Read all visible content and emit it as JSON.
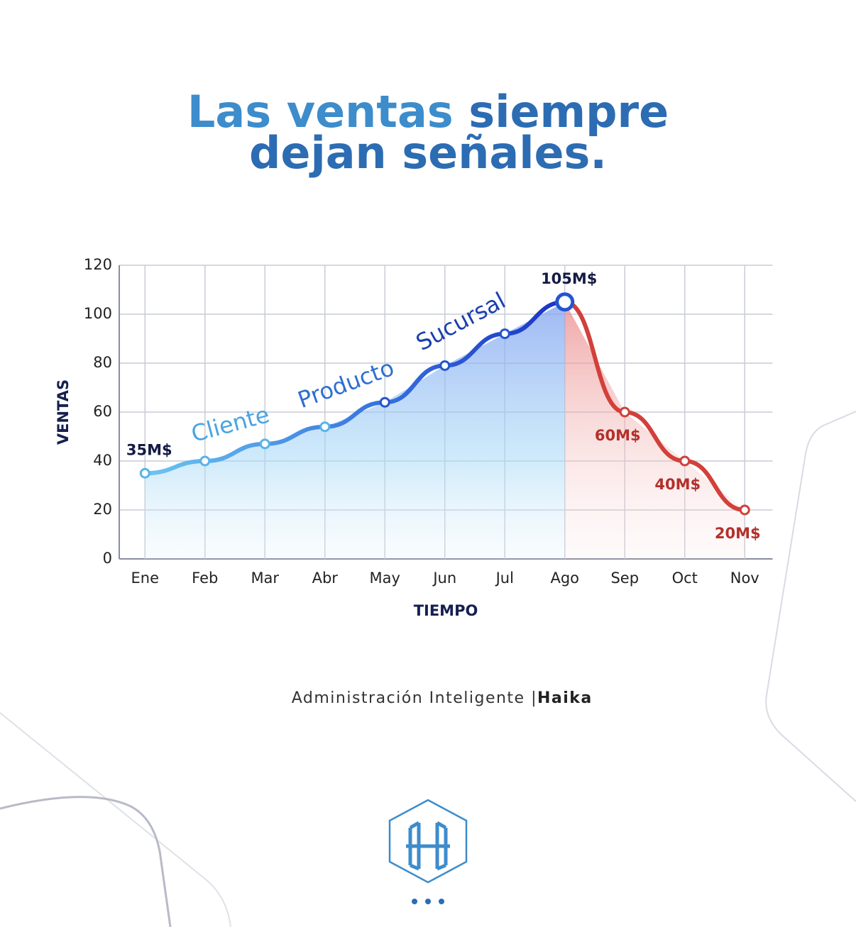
{
  "chart_data": {
    "type": "line",
    "title": {
      "line1": "Las ventas",
      "line1_bold": "siempre",
      "line2": "dejan señales."
    },
    "x_label": "TIEMPO",
    "y_label": "VENTAS",
    "categories": [
      "Ene",
      "Feb",
      "Mar",
      "Abr",
      "May",
      "Jun",
      "Jul",
      "Ago",
      "Sep",
      "Oct",
      "Nov"
    ],
    "series": [
      {
        "color": "#1f45c9",
        "values": [
          35,
          40,
          47,
          54,
          64,
          79,
          92,
          105,
          null,
          null,
          null
        ],
        "value_labels": [
          "35M$",
          null,
          null,
          null,
          null,
          null,
          null,
          "105M$",
          null,
          null,
          null
        ]
      },
      {
        "color": "#d2403a",
        "values": [
          null,
          null,
          null,
          null,
          null,
          null,
          null,
          105,
          60,
          40,
          20
        ],
        "value_labels": [
          null,
          null,
          null,
          null,
          null,
          null,
          null,
          null,
          "60M$",
          "40M$",
          "20M$"
        ]
      }
    ],
    "annotations": [
      "Cliente",
      "Producto",
      "Sucursal"
    ],
    "ylim": [
      0,
      120
    ],
    "yticks": [
      0,
      20,
      40,
      60,
      80,
      100,
      120
    ],
    "grid": true,
    "footer": {
      "text": "Administración Inteligente |",
      "brand": "Haika"
    }
  }
}
